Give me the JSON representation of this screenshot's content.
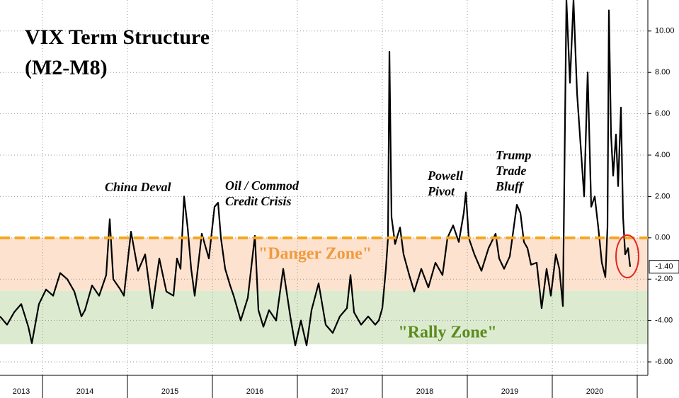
{
  "chart_data": {
    "type": "line",
    "title": "VIX Term Structure",
    "subtitle": "(M2-M8)",
    "x": [
      2013.5,
      2013.583,
      2013.667,
      2013.75,
      2013.833,
      2013.875,
      2013.958,
      2014.042,
      2014.125,
      2014.208,
      2014.292,
      2014.375,
      2014.458,
      2014.5,
      2014.583,
      2014.667,
      2014.75,
      2014.792,
      2014.833,
      2014.917,
      2014.958,
      2015.042,
      2015.125,
      2015.208,
      2015.292,
      2015.375,
      2015.458,
      2015.542,
      2015.583,
      2015.625,
      2015.667,
      2015.708,
      2015.75,
      2015.792,
      2015.875,
      2015.958,
      2016.025,
      2016.067,
      2016.1,
      2016.15,
      2016.208,
      2016.25,
      2016.333,
      2016.417,
      2016.5,
      2016.542,
      2016.6,
      2016.667,
      2016.75,
      2016.833,
      2016.917,
      2016.975,
      2017.042,
      2017.108,
      2017.167,
      2017.25,
      2017.333,
      2017.417,
      2017.5,
      2017.583,
      2017.625,
      2017.667,
      2017.75,
      2017.833,
      2017.917,
      2017.958,
      2018.0,
      2018.042,
      2018.067,
      2018.083,
      2018.108,
      2018.15,
      2018.208,
      2018.25,
      2018.317,
      2018.375,
      2018.458,
      2018.542,
      2018.625,
      2018.708,
      2018.767,
      2018.833,
      2018.9,
      2018.958,
      2018.983,
      2019.017,
      2019.083,
      2019.167,
      2019.25,
      2019.333,
      2019.375,
      2019.433,
      2019.5,
      2019.583,
      2019.625,
      2019.667,
      2019.708,
      2019.75,
      2019.817,
      2019.875,
      2019.933,
      2019.983,
      2020.042,
      2020.083,
      2020.125,
      2020.167,
      2020.208,
      2020.25,
      2020.292,
      2020.333,
      2020.375,
      2020.417,
      2020.458,
      2020.5,
      2020.542,
      2020.583,
      2020.625,
      2020.65,
      2020.667,
      2020.692,
      2020.717,
      2020.75,
      2020.775,
      2020.808,
      2020.833,
      2020.858,
      2020.892,
      2020.917
    ],
    "series": [
      {
        "name": "VIX M2-M8",
        "color": "#000000",
        "values": [
          -3.8,
          -4.2,
          -3.6,
          -3.2,
          -4.3,
          -5.1,
          -3.2,
          -2.5,
          -2.8,
          -1.7,
          -2.0,
          -2.6,
          -3.8,
          -3.5,
          -2.3,
          -2.8,
          -1.8,
          0.9,
          -2.0,
          -2.5,
          -2.8,
          0.3,
          -1.6,
          -0.8,
          -3.4,
          -1.0,
          -2.6,
          -2.8,
          -1.0,
          -1.5,
          2.0,
          0.5,
          -1.5,
          -2.8,
          0.2,
          -1.0,
          1.5,
          1.7,
          0.0,
          -1.5,
          -2.3,
          -2.8,
          -4.0,
          -2.9,
          0.1,
          -3.5,
          -4.3,
          -3.5,
          -4.0,
          -1.5,
          -3.8,
          -5.2,
          -4.0,
          -5.2,
          -3.5,
          -2.2,
          -4.2,
          -4.6,
          -3.8,
          -3.4,
          -1.8,
          -3.6,
          -4.2,
          -3.8,
          -4.2,
          -4.0,
          -3.4,
          -1.5,
          0.0,
          9.0,
          1.0,
          -0.3,
          0.5,
          -0.8,
          -1.8,
          -2.6,
          -1.5,
          -2.4,
          -1.2,
          -1.8,
          0.0,
          0.6,
          -0.2,
          1.2,
          2.2,
          0.0,
          -0.8,
          -1.6,
          -0.5,
          0.2,
          -1.0,
          -1.5,
          -0.9,
          1.6,
          1.2,
          -0.2,
          -0.5,
          -1.3,
          -1.2,
          -3.4,
          -1.5,
          -2.8,
          -0.8,
          -1.5,
          -3.3,
          11.5,
          7.5,
          11.5,
          7.0,
          4.5,
          2.0,
          8.0,
          1.5,
          2.0,
          0.5,
          -1.2,
          -1.9,
          0.5,
          11.0,
          5.0,
          3.0,
          5.0,
          2.5,
          6.3,
          1.0,
          -0.8,
          -0.5,
          -1.4
        ]
      }
    ],
    "xlim": [
      2013.5,
      2021.125
    ],
    "xticks": [
      2013,
      2014,
      2015,
      2016,
      2017,
      2018,
      2019,
      2020
    ],
    "ylim": [
      -6.65,
      11.5
    ],
    "yticks": [
      {
        "value": -6,
        "label": "-6.00"
      },
      {
        "value": -4,
        "label": "-4.00"
      },
      {
        "value": -2,
        "label": "-2.00"
      },
      {
        "value": 0,
        "label": "0.00"
      },
      {
        "value": 2,
        "label": "2.00"
      },
      {
        "value": 4,
        "label": "4.00"
      },
      {
        "value": 6,
        "label": "6.00"
      },
      {
        "value": 8,
        "label": "8.00"
      },
      {
        "value": 10,
        "label": "10.00"
      }
    ],
    "grid": true,
    "last_value": {
      "value": -1.4,
      "label": "-1.40"
    },
    "reference_line": {
      "value": 0,
      "color": "#f5a623"
    },
    "zones": [
      {
        "label": "\"Danger Zone\"",
        "from": -2.55,
        "to": 0,
        "color": "#fde3cf",
        "text_color": "#f19a3e"
      },
      {
        "label": "\"Rally Zone\"",
        "from": -5.15,
        "to": -2.55,
        "color": "#dcebd0",
        "text_color": "#5b8c1e"
      }
    ],
    "annotations": [
      {
        "lines": [
          "China Deval"
        ]
      },
      {
        "lines": [
          "Oil / Commod",
          "Credit Crisis"
        ]
      },
      {
        "lines": [
          "Powell",
          "Pivot"
        ]
      },
      {
        "lines": [
          "Trump",
          "Trade",
          "Bluff"
        ]
      }
    ]
  }
}
